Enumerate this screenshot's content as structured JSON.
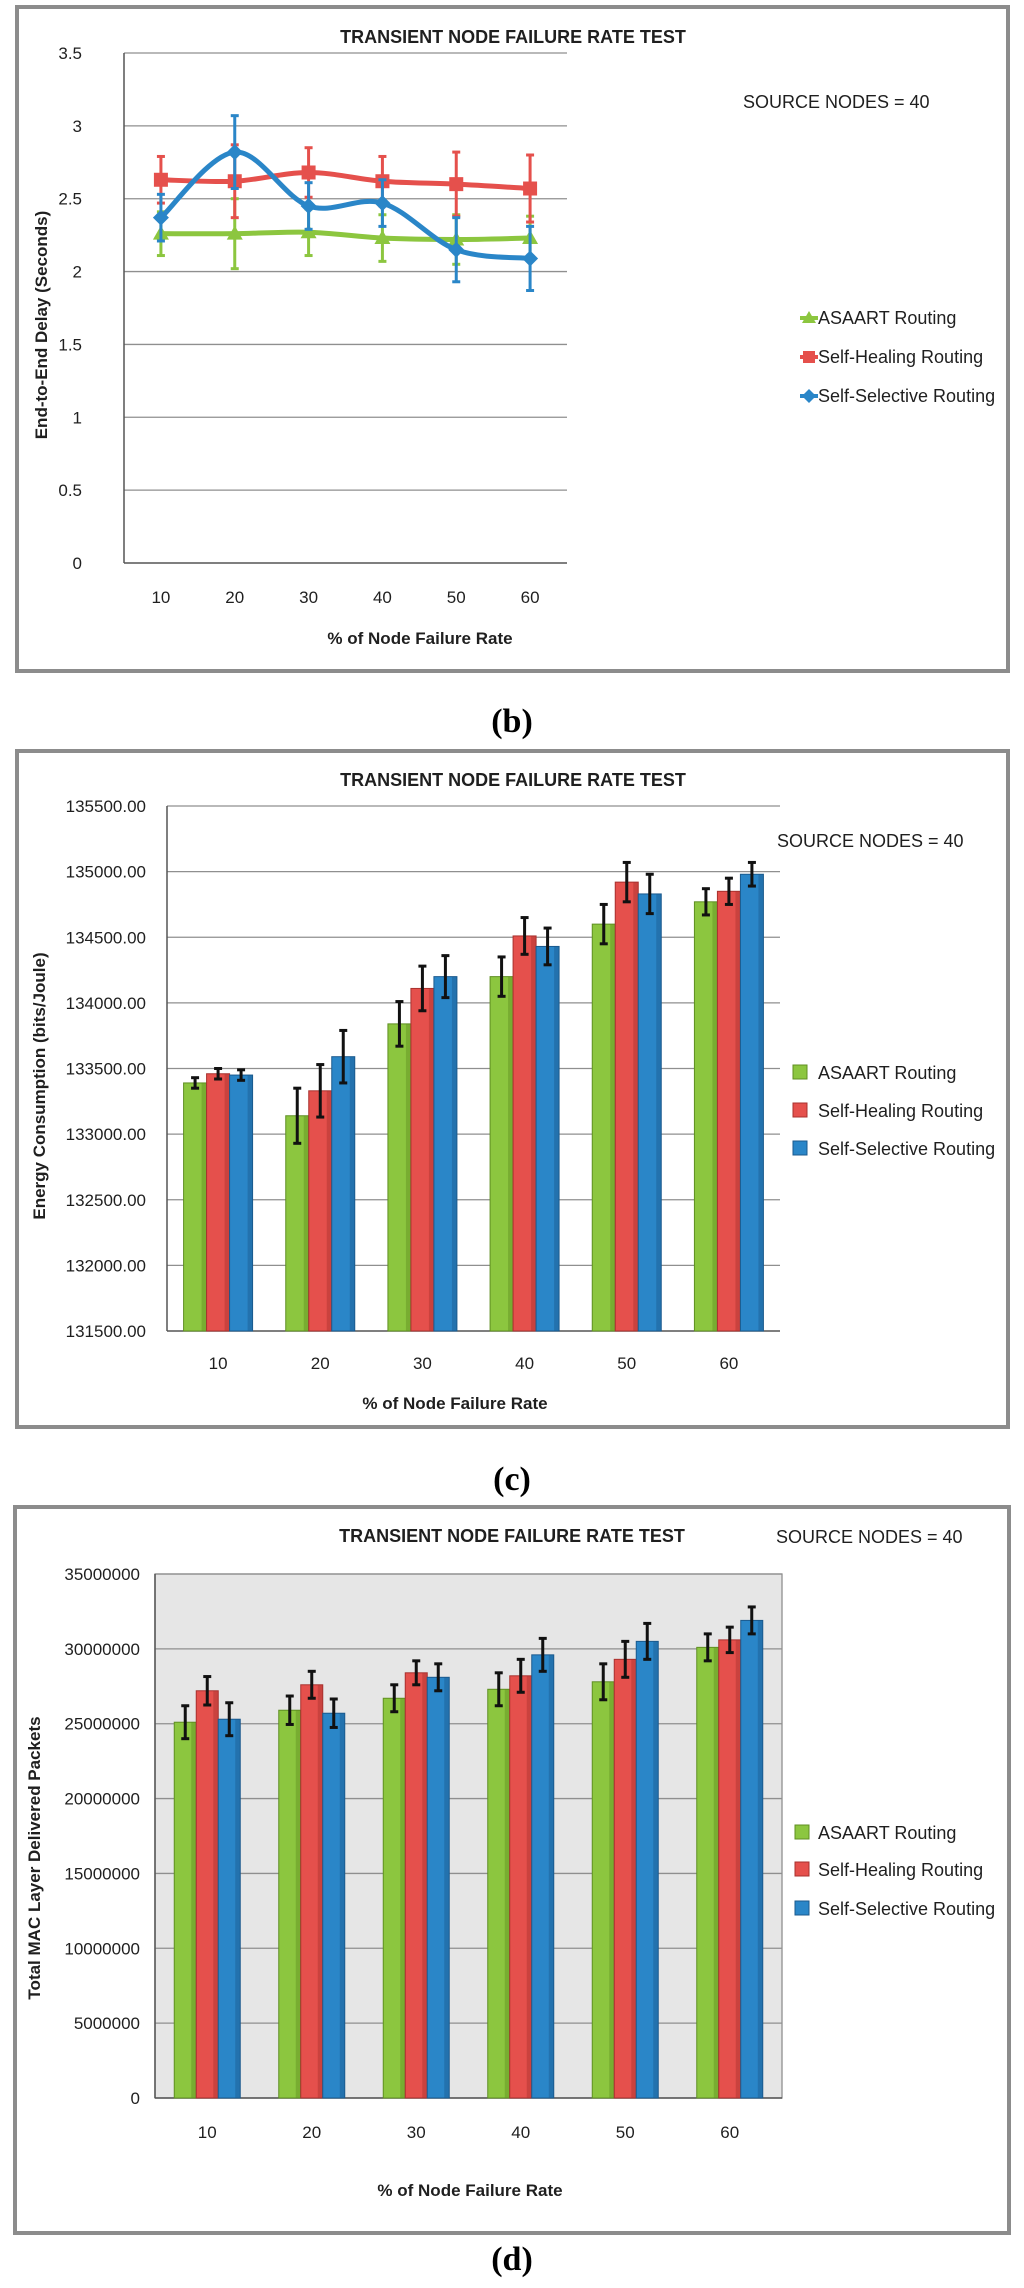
{
  "colors": {
    "asaart": "#8cc63f",
    "asaart_dark": "#5f8f22",
    "self_healing": "#e5504c",
    "self_healing_dark": "#a8312e",
    "self_selective": "#2a86c8",
    "self_selective_dark": "#1b5a8e",
    "plot_bg_d": "#e6e6e6"
  },
  "captions": [
    "(b)",
    "(c)",
    "(d)"
  ],
  "chart_data": [
    {
      "type": "line",
      "title": "TRANSIENT NODE FAILURE RATE TEST",
      "annotation": "SOURCE NODES = 40",
      "xlabel": "% of Node Failure Rate",
      "ylabel": "End-to-End  Delay (Seconds)",
      "categories": [
        "10",
        "20",
        "30",
        "40",
        "50",
        "60"
      ],
      "ylim": [
        0,
        3.5
      ],
      "yticks": [
        "0",
        "0.5",
        "1",
        "1.5",
        "2",
        "2.5",
        "3",
        "3.5"
      ],
      "grid": true,
      "legend_position": "right",
      "series": [
        {
          "name": "ASAART Routing",
          "values": [
            2.26,
            2.26,
            2.27,
            2.23,
            2.22,
            2.23
          ],
          "errors": [
            0.15,
            0.24,
            0.16,
            0.16,
            0.17,
            0.15
          ]
        },
        {
          "name": "Self-Healing Routing",
          "values": [
            2.63,
            2.62,
            2.68,
            2.62,
            2.6,
            2.57
          ],
          "errors": [
            0.16,
            0.25,
            0.17,
            0.17,
            0.22,
            0.23
          ]
        },
        {
          "name": "Self-Selective Routing",
          "values": [
            2.37,
            2.82,
            2.45,
            2.47,
            2.15,
            2.09
          ],
          "errors": [
            0.16,
            0.25,
            0.16,
            0.16,
            0.22,
            0.22
          ]
        }
      ]
    },
    {
      "type": "bar",
      "title": "TRANSIENT NODE FAILURE RATE TEST",
      "annotation": "SOURCE NODES = 40",
      "xlabel": "% of  Node Failure Rate",
      "ylabel": "Energy Consumption (bits/Joule)",
      "categories": [
        "10",
        "20",
        "30",
        "40",
        "50",
        "60"
      ],
      "ylim": [
        131500,
        135500
      ],
      "yticks": [
        "131500.00",
        "132000.00",
        "132500.00",
        "133000.00",
        "133500.00",
        "134000.00",
        "134500.00",
        "135000.00",
        "135500.00"
      ],
      "grid": true,
      "legend_position": "right",
      "series": [
        {
          "name": "ASAART Routing",
          "values": [
            133390,
            133140,
            133840,
            134200,
            134600,
            134770
          ],
          "errors": [
            40,
            210,
            170,
            150,
            150,
            100
          ]
        },
        {
          "name": "Self-Healing Routing",
          "values": [
            133460,
            133330,
            134110,
            134510,
            134920,
            134850
          ],
          "errors": [
            40,
            200,
            170,
            140,
            150,
            100
          ]
        },
        {
          "name": "Self-Selective Routing",
          "values": [
            133450,
            133590,
            134200,
            134430,
            134830,
            134980
          ],
          "errors": [
            40,
            200,
            160,
            140,
            150,
            90
          ]
        }
      ]
    },
    {
      "type": "bar",
      "title": "TRANSIENT NODE FAILURE RATE TEST",
      "annotation": "SOURCE NODES = 40",
      "xlabel": "% of Node Failure Rate",
      "ylabel": "Total MAC Layer Delivered Packets",
      "categories": [
        "10",
        "20",
        "30",
        "40",
        "50",
        "60"
      ],
      "ylim": [
        0,
        35000000
      ],
      "yticks": [
        "0",
        "5000000",
        "10000000",
        "15000000",
        "20000000",
        "25000000",
        "30000000",
        "35000000"
      ],
      "grid": true,
      "legend_position": "right",
      "series": [
        {
          "name": "ASAART Routing",
          "values": [
            25100000,
            25900000,
            26700000,
            27300000,
            27800000,
            30100000
          ],
          "errors": [
            1100000,
            950000,
            900000,
            1100000,
            1200000,
            900000
          ]
        },
        {
          "name": "Self-Healing Routing",
          "values": [
            27200000,
            27600000,
            28400000,
            28200000,
            29300000,
            30600000
          ],
          "errors": [
            950000,
            900000,
            800000,
            1100000,
            1200000,
            850000
          ]
        },
        {
          "name": "Self-Selective Routing",
          "values": [
            25300000,
            25700000,
            28100000,
            29600000,
            30500000,
            31900000
          ],
          "errors": [
            1100000,
            950000,
            900000,
            1100000,
            1200000,
            900000
          ]
        }
      ]
    }
  ]
}
